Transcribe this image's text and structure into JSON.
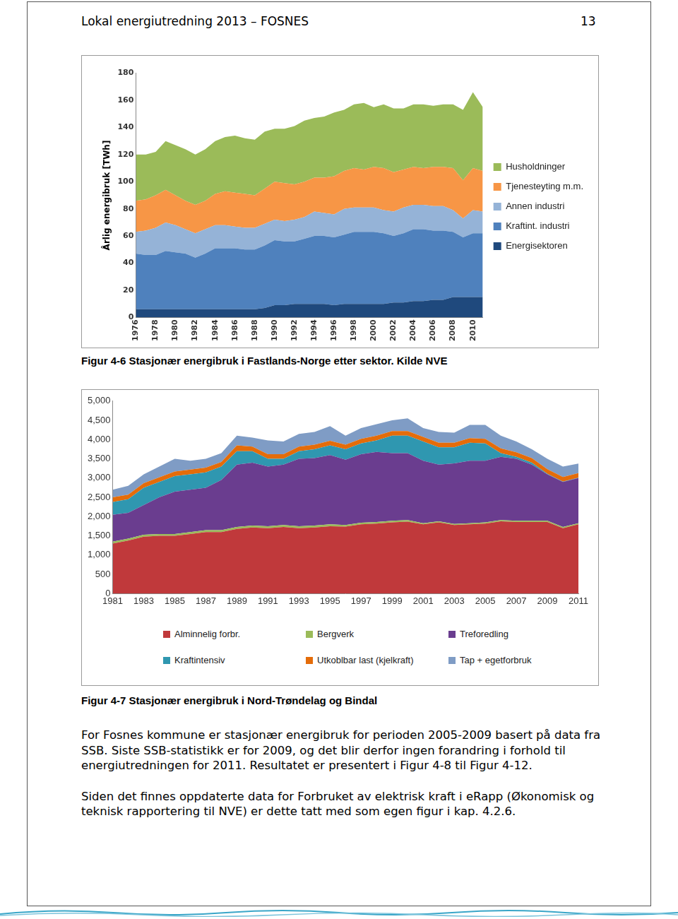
{
  "header": {
    "title": "Lokal energiutredning 2013 – FOSNES",
    "page": "13"
  },
  "chart_data": [
    {
      "type": "area",
      "title": "Figur 4-6  Stasjonær energibruk i Fastlands-Norge etter sektor. Kilde NVE",
      "y_label": "Årlig energibruk [TWh]",
      "categories": [
        "1976",
        null,
        "1978",
        null,
        "1980",
        null,
        "1982",
        null,
        "1984",
        null,
        "1986",
        null,
        "1988",
        null,
        "1990",
        null,
        "1992",
        null,
        "1994",
        null,
        "1996",
        null,
        "1998",
        null,
        "2000",
        null,
        "2002",
        null,
        "2004",
        null,
        "2006",
        null,
        "2008",
        null,
        "2010",
        null
      ],
      "series": [
        {
          "name": "Energisektoren",
          "color": "#1f497d",
          "values": [
            6,
            6,
            6,
            6,
            6,
            6,
            6,
            6,
            6,
            6,
            6,
            6,
            6,
            7,
            9,
            9,
            10,
            10,
            10,
            10,
            9,
            10,
            10,
            10,
            10,
            10,
            11,
            11,
            12,
            12,
            13,
            13,
            15,
            15,
            15,
            15
          ]
        },
        {
          "name": "Kraftint. industri",
          "color": "#4f81bd",
          "values": [
            41,
            40,
            40,
            43,
            42,
            41,
            38,
            41,
            45,
            45,
            45,
            44,
            44,
            46,
            48,
            47,
            46,
            48,
            50,
            50,
            50,
            51,
            53,
            53,
            53,
            52,
            49,
            51,
            53,
            53,
            51,
            51,
            48,
            44,
            47,
            47
          ]
        },
        {
          "name": "Annen industri",
          "color": "#95b3d7",
          "values": [
            16,
            18,
            20,
            21,
            20,
            18,
            18,
            18,
            17,
            17,
            16,
            16,
            16,
            16,
            15,
            15,
            16,
            16,
            18,
            17,
            17,
            19,
            18,
            18,
            18,
            17,
            18,
            19,
            18,
            18,
            18,
            18,
            16,
            14,
            17,
            16
          ]
        },
        {
          "name": "Tjenesteyting m.m.",
          "color": "#f79646",
          "values": [
            23,
            23,
            24,
            24,
            22,
            21,
            21,
            21,
            23,
            25,
            25,
            25,
            24,
            26,
            28,
            28,
            26,
            26,
            25,
            26,
            28,
            28,
            29,
            28,
            30,
            31,
            29,
            28,
            28,
            27,
            29,
            29,
            31,
            28,
            31,
            30
          ]
        },
        {
          "name": "Husholdninger",
          "color": "#9bbb59",
          "values": [
            34,
            33,
            32,
            36,
            37,
            38,
            37,
            38,
            39,
            40,
            42,
            41,
            41,
            42,
            39,
            40,
            43,
            45,
            44,
            45,
            47,
            45,
            47,
            49,
            44,
            47,
            47,
            45,
            46,
            47,
            45,
            46,
            47,
            52,
            56,
            47
          ]
        }
      ],
      "stacked": true,
      "ylim": [
        0,
        180
      ],
      "yticks": [
        0,
        20,
        40,
        60,
        80,
        100,
        120,
        140,
        160,
        180
      ],
      "grid": false,
      "legend": "right"
    },
    {
      "type": "area",
      "title": "Figur 4-7 Stasjonær energibruk i Nord-Trøndelag og Bindal",
      "categories": [
        "1981",
        null,
        "1983",
        null,
        "1985",
        null,
        "1987",
        null,
        "1989",
        null,
        "1991",
        null,
        "1993",
        null,
        "1995",
        null,
        "1997",
        null,
        "1999",
        null,
        "2001",
        null,
        "2003",
        null,
        "2005",
        null,
        "2007",
        null,
        "2009",
        null,
        "2011"
      ],
      "series": [
        {
          "name": "Alminnelig forbr.",
          "color": "#c0393b",
          "values": [
            1300,
            1380,
            1480,
            1500,
            1500,
            1550,
            1600,
            1600,
            1680,
            1720,
            1700,
            1730,
            1700,
            1720,
            1750,
            1740,
            1800,
            1820,
            1850,
            1870,
            1800,
            1850,
            1780,
            1800,
            1820,
            1880,
            1860,
            1860,
            1860,
            1700,
            1800
          ]
        },
        {
          "name": "Bergverk",
          "color": "#9bbb59",
          "values": [
            50,
            50,
            50,
            50,
            50,
            50,
            50,
            50,
            50,
            50,
            50,
            50,
            50,
            50,
            50,
            40,
            40,
            40,
            40,
            40,
            30,
            30,
            30,
            30,
            30,
            30,
            30,
            30,
            30,
            30,
            30
          ]
        },
        {
          "name": "Treforedling",
          "color": "#6a3d8f",
          "values": [
            700,
            670,
            770,
            950,
            1100,
            1100,
            1100,
            1300,
            1620,
            1630,
            1550,
            1570,
            1750,
            1750,
            1800,
            1700,
            1780,
            1820,
            1760,
            1740,
            1620,
            1470,
            1570,
            1620,
            1600,
            1640,
            1610,
            1460,
            1210,
            1170,
            1170
          ]
        },
        {
          "name": "Kraftintensiv",
          "color": "#2f97b0",
          "values": [
            330,
            350,
            450,
            400,
            400,
            400,
            400,
            350,
            350,
            300,
            200,
            150,
            200,
            230,
            250,
            270,
            280,
            300,
            450,
            450,
            500,
            450,
            420,
            470,
            450,
            100,
            50,
            50,
            10,
            10,
            10
          ]
        },
        {
          "name": "Utkoblbar last (kjelkraft)",
          "color": "#e46c0a",
          "values": [
            120,
            120,
            120,
            120,
            120,
            120,
            120,
            120,
            150,
            120,
            120,
            120,
            120,
            120,
            120,
            120,
            120,
            120,
            120,
            120,
            120,
            120,
            120,
            120,
            120,
            120,
            120,
            120,
            120,
            120,
            120
          ]
        },
        {
          "name": "Tap + egetforbruk",
          "color": "#7f9cc5",
          "values": [
            200,
            230,
            230,
            280,
            330,
            230,
            230,
            230,
            250,
            230,
            360,
            330,
            330,
            330,
            380,
            230,
            280,
            300,
            280,
            330,
            230,
            280,
            260,
            340,
            360,
            330,
            280,
            230,
            270,
            270,
            250
          ]
        }
      ],
      "stacked": true,
      "ylim": [
        0,
        5000
      ],
      "yticks": [
        0,
        500,
        1000,
        1500,
        2000,
        2500,
        3000,
        3500,
        4000,
        4500,
        5000
      ],
      "grid": false,
      "legend": "bottom"
    }
  ],
  "paragraphs": [
    "For Fosnes kommune er stasjonær energibruk for perioden 2005-2009 basert på data fra SSB. Siste SSB-statistikk er for 2009, og det blir derfor ingen forandring i forhold til energiutredningen for 2011. Resultatet er presentert i Figur 4-8 til Figur 4-12.",
    "Siden det finnes oppdaterte data for Forbruket av elektrisk kraft i eRapp (Økonomisk og teknisk rapportering til NVE) er dette tatt med som egen figur i kap. 4.2.6."
  ]
}
